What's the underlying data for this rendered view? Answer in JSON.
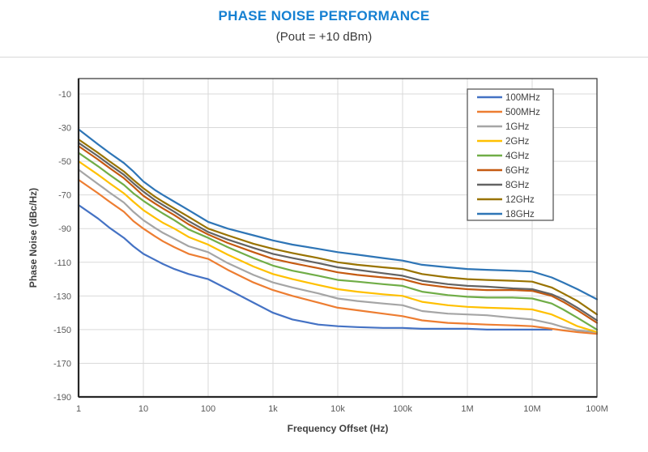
{
  "header": {
    "title": "PHASE NOISE PERFORMANCE",
    "subtitle": "(Pout = +10 dBm)"
  },
  "chart_data": {
    "type": "line",
    "title": "PHASE NOISE PERFORMANCE",
    "subtitle": "(Pout = +10 dBm)",
    "xlabel": "Frequency Offset (Hz)",
    "ylabel": "Phase Noise (dBc/Hz)",
    "x_scale": "log",
    "xlim": [
      1,
      100000000
    ],
    "ylim": [
      -190,
      0
    ],
    "grid": true,
    "grid_color": "#d9d9d9",
    "frame_color": "#404040",
    "axis_color": "#262626",
    "legend_position": "top-right",
    "x_ticks": [
      "1",
      "10",
      "100",
      "1k",
      "10k",
      "100k",
      "1M",
      "10M",
      "100M"
    ],
    "x_tick_values": [
      1,
      10,
      100,
      1000,
      10000,
      100000,
      1000000,
      10000000,
      100000000
    ],
    "y_ticks": [
      -10,
      -30,
      -50,
      -70,
      -90,
      -110,
      -130,
      -150,
      -170,
      -190
    ],
    "x": [
      1,
      2,
      3,
      5,
      7,
      10,
      15,
      20,
      30,
      50,
      100,
      200,
      500,
      1000,
      2000,
      5000,
      10000,
      20000,
      50000,
      100000,
      200000,
      500000,
      1000000,
      2000000,
      5000000,
      10000000,
      20000000,
      30000000,
      50000000,
      100000000
    ],
    "series": [
      {
        "name": "100MHz",
        "color": "#4472C4",
        "values": [
          -76,
          -84,
          -89.5,
          -95.5,
          -100.5,
          -105,
          -108.5,
          -111,
          -114,
          -117,
          -120,
          -126,
          -134,
          -140,
          -144,
          -147,
          -148,
          -148.5,
          -149,
          -149,
          -149.5,
          -149.5,
          -149.5,
          -150,
          -150,
          -150,
          -150,
          null,
          null,
          null
        ]
      },
      {
        "name": "500MHz",
        "color": "#ED7D31",
        "values": [
          -61,
          -69,
          -74,
          -80,
          -85.5,
          -90,
          -94.5,
          -97.5,
          -101,
          -105,
          -108,
          -114.5,
          -122,
          -126.5,
          -130,
          -134,
          -137,
          -138.5,
          -140.5,
          -142,
          -144.5,
          -146,
          -146.5,
          -147,
          -147.5,
          -148,
          -149.5,
          -150.5,
          -151.5,
          -152.5
        ]
      },
      {
        "name": "1GHz",
        "color": "#A5A5A5",
        "values": [
          -55,
          -63.5,
          -68.5,
          -74.5,
          -80,
          -85,
          -89.5,
          -92.5,
          -96,
          -100.5,
          -104,
          -110.5,
          -117.5,
          -122,
          -125,
          -128.5,
          -131.5,
          -133,
          -134.5,
          -135.5,
          -139,
          -140.5,
          -141,
          -141.5,
          -143,
          -144,
          -146.5,
          -148.5,
          -150.5,
          -151.5
        ]
      },
      {
        "name": "2GHz",
        "color": "#FFC000",
        "values": [
          -50,
          -58,
          -63,
          -69,
          -74,
          -79,
          -83.5,
          -86.5,
          -90,
          -95,
          -99.5,
          -105.5,
          -112.5,
          -117,
          -120,
          -123.5,
          -126,
          -127.5,
          -129,
          -130,
          -133.5,
          -135.5,
          -136.5,
          -137,
          -137.5,
          -138,
          -141,
          -144,
          -148,
          -151.5
        ]
      },
      {
        "name": "4GHz",
        "color": "#70AD47",
        "values": [
          -45,
          -53,
          -58,
          -64,
          -69,
          -73.5,
          -78,
          -81,
          -85,
          -90.5,
          -95.5,
          -101,
          -107.5,
          -112,
          -115,
          -118,
          -120.5,
          -121.5,
          -123,
          -124,
          -127.5,
          -129.5,
          -130.5,
          -131,
          -131,
          -131.5,
          -134.5,
          -138,
          -143,
          -150
        ]
      },
      {
        "name": "6GHz",
        "color": "#C55A11",
        "values": [
          -41,
          -49,
          -54,
          -60,
          -65,
          -70.5,
          -75,
          -78,
          -82,
          -87.5,
          -93.5,
          -98.5,
          -104,
          -108,
          -110.5,
          -113.5,
          -116,
          -117.5,
          -119,
          -120,
          -123,
          -125,
          -126,
          -126.5,
          -126.5,
          -127,
          -130,
          -133.5,
          -138.5,
          -146
        ]
      },
      {
        "name": "8GHz",
        "color": "#636363",
        "values": [
          -39,
          -47,
          -52,
          -58,
          -63,
          -68,
          -73,
          -76,
          -80,
          -85.5,
          -92,
          -96.5,
          -101.5,
          -105,
          -107.5,
          -110.5,
          -113,
          -114.5,
          -116.5,
          -118,
          -121,
          -123,
          -124,
          -124.5,
          -125.5,
          -126,
          -129,
          -132,
          -137,
          -144.5
        ]
      },
      {
        "name": "12GHz",
        "color": "#997300",
        "values": [
          -37,
          -45,
          -50,
          -56,
          -61,
          -66,
          -71,
          -74,
          -78,
          -83,
          -90,
          -94,
          -99,
          -102,
          -104.5,
          -107.5,
          -110,
          -111.5,
          -113,
          -114,
          -117,
          -119,
          -120,
          -120.5,
          -121,
          -121.5,
          -125,
          -128.5,
          -133,
          -141
        ]
      },
      {
        "name": "18GHz",
        "color": "#2E75B6",
        "values": [
          -31,
          -40,
          -45,
          -51,
          -56,
          -62,
          -67,
          -70,
          -74,
          -79,
          -86,
          -90,
          -94,
          -97,
          -99.5,
          -102,
          -104,
          -105.5,
          -107.5,
          -109,
          -111.5,
          -113,
          -114,
          -114.5,
          -115,
          -115.5,
          -119,
          -122,
          -126,
          -132
        ]
      }
    ]
  }
}
